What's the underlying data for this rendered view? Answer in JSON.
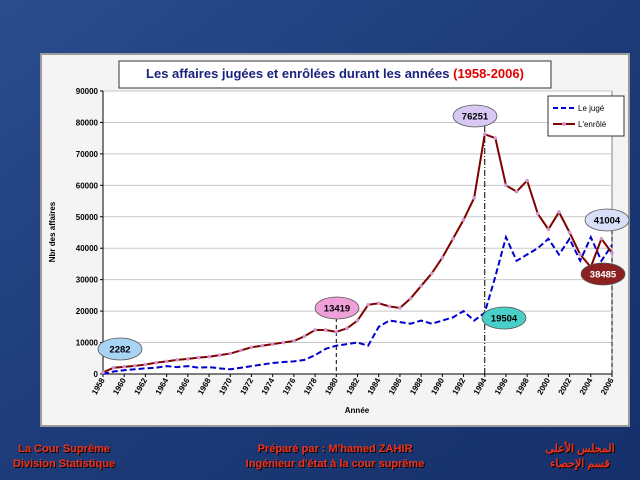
{
  "chart_data": {
    "type": "line",
    "title": {
      "text": "Les affaires jugées et enrôlées durant les années",
      "highlight": "(1958-2006)"
    },
    "x_label": "Année",
    "y_label": "Nbr des affaires",
    "x": [
      1958,
      1959,
      1960,
      1961,
      1962,
      1963,
      1964,
      1965,
      1966,
      1967,
      1968,
      1969,
      1970,
      1971,
      1972,
      1973,
      1974,
      1975,
      1976,
      1977,
      1978,
      1979,
      1980,
      1981,
      1982,
      1983,
      1984,
      1985,
      1986,
      1987,
      1988,
      1989,
      1990,
      1991,
      1992,
      1993,
      1994,
      1995,
      1996,
      1997,
      1998,
      1999,
      2000,
      2001,
      2002,
      2003,
      2004,
      2005,
      2006
    ],
    "xlim": [
      1958,
      2006
    ],
    "xticks": [
      1958,
      1960,
      1962,
      1964,
      1966,
      1968,
      1970,
      1972,
      1974,
      1976,
      1978,
      1980,
      1982,
      1984,
      1986,
      1988,
      1990,
      1992,
      1994,
      1996,
      1998,
      2000,
      2002,
      2004,
      2006
    ],
    "ylim": [
      0,
      90000
    ],
    "yticks": [
      0,
      10000,
      20000,
      30000,
      40000,
      50000,
      60000,
      70000,
      80000,
      90000
    ],
    "grid": true,
    "legend": "upper right",
    "series": [
      {
        "name": "Le jugé",
        "color": "#0000cc",
        "dashed": true,
        "values": [
          0,
          800,
          1200,
          1500,
          1800,
          2000,
          2500,
          2200,
          2500,
          2000,
          2200,
          1800,
          1500,
          2000,
          2500,
          3000,
          3500,
          3800,
          4000,
          4500,
          6000,
          8000,
          9000,
          9500,
          10000,
          9000,
          15000,
          17000,
          16500,
          16000,
          17000,
          16000,
          17000,
          18000,
          20000,
          17000,
          19504,
          31000,
          43500,
          36000,
          38000,
          40000,
          43000,
          38000,
          43000,
          36000,
          43500,
          36000,
          41004
        ]
      },
      {
        "name": "L'enrôlé",
        "color": "#800000",
        "marker_color": "#cc99cc",
        "values": [
          500,
          2000,
          2282,
          2600,
          3000,
          3600,
          4000,
          4500,
          4800,
          5200,
          5500,
          6000,
          6500,
          7500,
          8500,
          9000,
          9500,
          10000,
          10500,
          12000,
          14000,
          14000,
          13419,
          14500,
          17000,
          22000,
          22500,
          21500,
          21000,
          24000,
          28000,
          32000,
          37000,
          43000,
          49000,
          56000,
          76251,
          75000,
          60000,
          58000,
          61500,
          51000,
          46000,
          51500,
          45000,
          38000,
          34000,
          43000,
          38485
        ]
      }
    ]
  },
  "footer": {
    "left": [
      "La Cour Suprême",
      "Division Statistique"
    ],
    "center": [
      "Préparé par : M'hamed ZAHIR",
      "Ingénieur d'état à la cour suprême"
    ],
    "right": [
      "المجلس الأعلى",
      "قسم الإحصاء"
    ]
  }
}
